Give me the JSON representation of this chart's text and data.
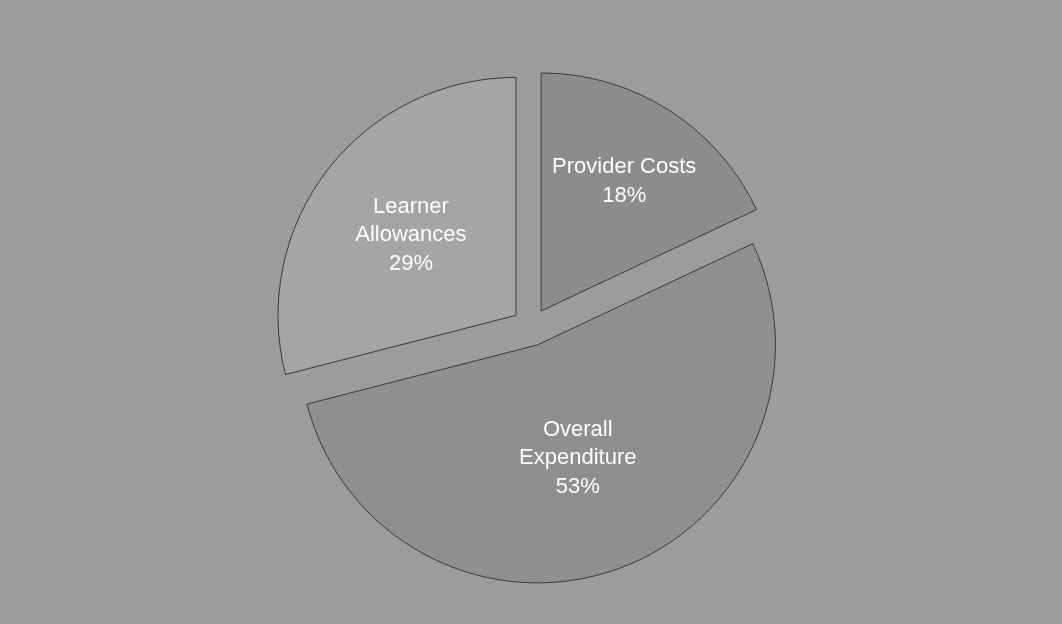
{
  "chart_data": {
    "type": "pie",
    "categories": [
      "Provider Costs",
      "Overall Expenditure",
      "Learner Allowances"
    ],
    "values": [
      18,
      53,
      29
    ],
    "value_labels": [
      "18%",
      "53%",
      "29%"
    ],
    "colors": [
      "#8c8c8c",
      "#8f8f8f",
      "#a5a5a5"
    ],
    "legend": false
  }
}
